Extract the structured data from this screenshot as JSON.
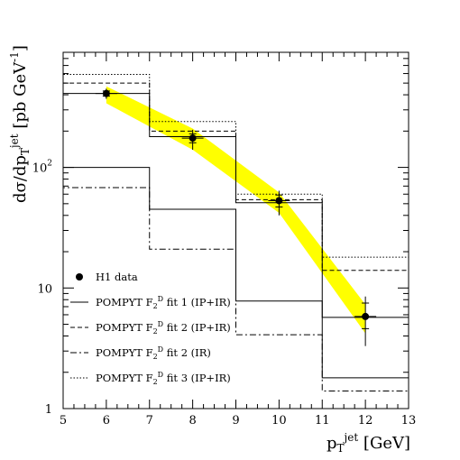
{
  "chart_data": {
    "type": "line",
    "xlabel": "p_T^jet [GeV]",
    "ylabel": "dσ/dp_T^jet [pb GeV^-1]",
    "xlim": [
      5,
      13
    ],
    "ylim": [
      1,
      900
    ],
    "yscale": "log",
    "x_ticks": [
      "5",
      "6",
      "7",
      "8",
      "9",
      "10",
      "11",
      "12",
      "13"
    ],
    "y_ticks": [
      {
        "value": 1,
        "label": "1"
      },
      {
        "value": 10,
        "label": "10"
      },
      {
        "value": 100,
        "label": "10²"
      }
    ],
    "data_series": {
      "name": "H1 data",
      "points": [
        {
          "x": 6,
          "y": 410,
          "stat_lo": 390,
          "stat_hi": 430,
          "tot_lo": 370,
          "tot_hi": 450
        },
        {
          "x": 8,
          "y": 175,
          "stat_lo": 160,
          "stat_hi": 190,
          "tot_lo": 140,
          "tot_hi": 205
        },
        {
          "x": 10,
          "y": 53,
          "stat_lo": 47,
          "stat_hi": 59,
          "tot_lo": 40,
          "tot_hi": 64
        },
        {
          "x": 12,
          "y": 5.8,
          "stat_lo": 4.6,
          "stat_hi": 7.5,
          "tot_lo": 3.3,
          "tot_hi": 8.5
        }
      ]
    },
    "band": {
      "color": "#ffff00",
      "x": [
        6,
        8,
        10,
        12
      ],
      "lo": [
        340,
        140,
        42,
        4.2
      ],
      "hi": [
        470,
        210,
        62,
        7.3
      ]
    },
    "edges": [
      5,
      7,
      9,
      11,
      13
    ],
    "series": [
      {
        "name": "POMPYT F2D fit 1 (IP+IR) upper",
        "style": "solid",
        "values": [
          410,
          180,
          51,
          5.7
        ]
      },
      {
        "name": "POMPYT F2D fit 1 (IP+IR)",
        "style": "solid",
        "values": [
          100,
          45,
          7.8,
          1.8
        ]
      },
      {
        "name": "POMPYT F2D fit 2 (IP+IR)",
        "style": "dashed",
        "values": [
          500,
          200,
          54,
          14
        ]
      },
      {
        "name": "POMPYT F2D fit 2 (IR)",
        "style": "dashdot",
        "values": [
          68,
          21,
          4.1,
          1.4
        ]
      },
      {
        "name": "POMPYT F2D fit 3 (IP+IR)",
        "style": "dotted",
        "values": [
          590,
          240,
          60,
          18
        ]
      }
    ],
    "legend": [
      {
        "marker": "dot",
        "text_main": "H1 data",
        "text_sub": "",
        "text_tail": ""
      },
      {
        "marker": "solid",
        "text_main": "POMPYT F",
        "text_sub": "2",
        "text_sup": "D",
        "text_tail": " fit 1 (IP+IR)"
      },
      {
        "marker": "dashed",
        "text_main": "POMPYT F",
        "text_sub": "2",
        "text_sup": "D",
        "text_tail": " fit 2 (IP+IR)"
      },
      {
        "marker": "dashdot",
        "text_main": "POMPYT F",
        "text_sub": "2",
        "text_sup": "D",
        "text_tail": " fit 2 (IR)"
      },
      {
        "marker": "dotted",
        "text_main": "POMPYT F",
        "text_sub": "2",
        "text_sup": "D",
        "text_tail": " fit 3 (IP+IR)"
      }
    ],
    "legend_position": "lower-left"
  }
}
